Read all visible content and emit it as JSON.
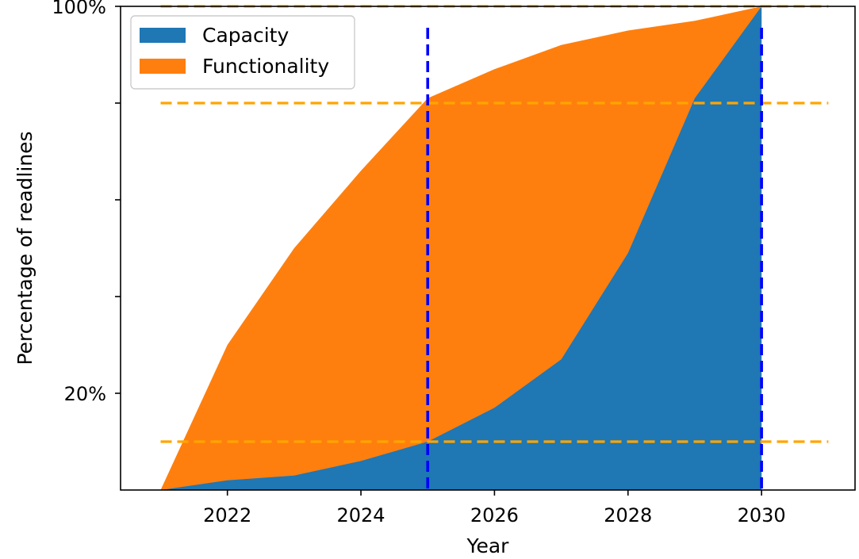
{
  "chart_data": {
    "type": "area",
    "xlabel": "Year",
    "ylabel": "Percentage of readlines",
    "x": [
      2021,
      2022,
      2023,
      2024,
      2025,
      2026,
      2027,
      2028,
      2029,
      2030
    ],
    "xlim": [
      2020.4,
      2031.4
    ],
    "ylim": [
      0,
      1
    ],
    "x_ticks": [
      2022,
      2024,
      2026,
      2028,
      2030
    ],
    "y_ticks": [
      {
        "value": 0.2,
        "label": "20%"
      },
      {
        "value": 0.4,
        "label": ""
      },
      {
        "value": 0.6,
        "label": ""
      },
      {
        "value": 0.8,
        "label": ""
      },
      {
        "value": 1.0,
        "label": "100%"
      }
    ],
    "series": [
      {
        "name": "Capacity",
        "color": "#1f77b4",
        "values": [
          0.0,
          0.02,
          0.03,
          0.06,
          0.1,
          0.17,
          0.27,
          0.49,
          0.81,
          1.0
        ]
      },
      {
        "name": "Functionality",
        "color": "#ff7f0e",
        "values": [
          0.0,
          0.3,
          0.5,
          0.66,
          0.81,
          0.87,
          0.92,
          0.95,
          0.97,
          1.0
        ]
      }
    ],
    "reference_lines": {
      "horizontal": {
        "values": [
          1.0,
          0.8,
          0.1
        ],
        "color": "#ffa500",
        "style": "dashed"
      },
      "vertical": {
        "values": [
          2025,
          2030
        ],
        "color": "#0000ff",
        "style": "dashed"
      }
    },
    "legend": {
      "placement": "top-left"
    },
    "grid": false
  }
}
